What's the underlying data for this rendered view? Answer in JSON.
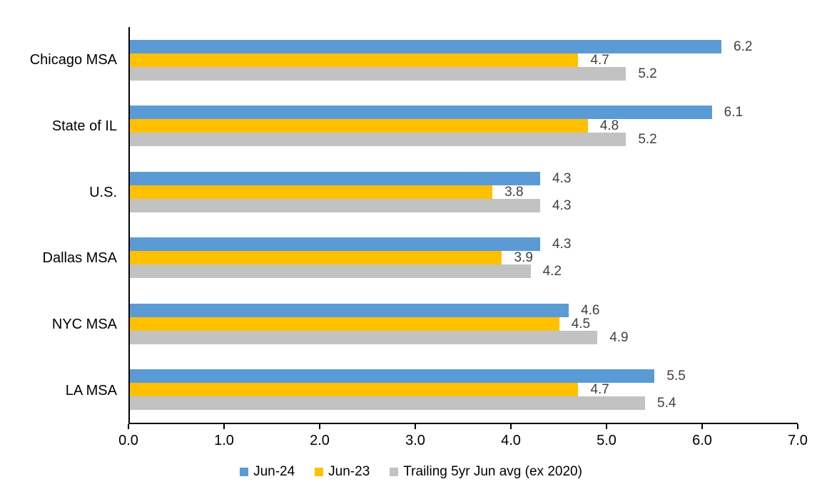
{
  "chart_data": {
    "type": "bar",
    "orientation": "horizontal",
    "title": "",
    "xlabel": "",
    "ylabel": "",
    "categories": [
      "Chicago MSA",
      "State of IL",
      "U.S.",
      "Dallas MSA",
      "NYC MSA",
      "LA MSA"
    ],
    "series": [
      {
        "name": "Jun-24",
        "color": "#5B9BD5",
        "values": [
          6.2,
          6.1,
          4.3,
          4.3,
          4.6,
          5.5
        ]
      },
      {
        "name": "Jun-23",
        "color": "#FFC000",
        "values": [
          4.7,
          4.8,
          3.8,
          3.9,
          4.5,
          4.7
        ]
      },
      {
        "name": "Trailing 5yr Jun avg (ex 2020)",
        "color": "#C2C2C2",
        "values": [
          5.2,
          5.2,
          4.3,
          4.2,
          4.9,
          5.4
        ]
      }
    ],
    "xlim": [
      0,
      7
    ],
    "x_ticks": [
      "0.0",
      "1.0",
      "2.0",
      "3.0",
      "4.0",
      "5.0",
      "6.0",
      "7.0"
    ],
    "grid": false,
    "legend_position": "bottom",
    "value_labels": true
  },
  "colors": {
    "background": "#FFFFFF",
    "axis": "#000000",
    "value_label_text": "#404040",
    "category_label_text": "#000000"
  }
}
